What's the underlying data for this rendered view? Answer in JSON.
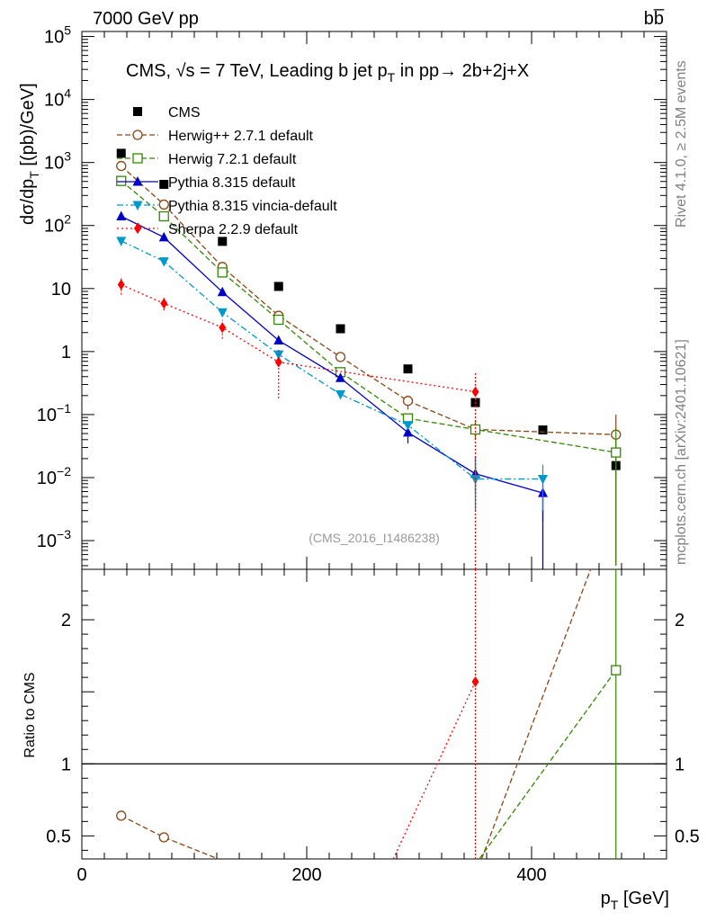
{
  "header": {
    "energy_label": "7000 GeV pp",
    "process_label": "bb̅"
  },
  "side": {
    "rivet": "Rivet 4.1.0, ≥ 2.5M events",
    "mcplots": "mcplots.cern.ch [arXiv:2401.10621]"
  },
  "chart_data": {
    "type": "line",
    "title": "CMS, √s = 7 TeV, Leading b jet p_T in pp→ 2b+2j+X",
    "title_parts": {
      "pre": "CMS, ",
      "sqrt": "√",
      "s_eq": "s = 7 TeV, Leading b jet p",
      "sub": "T",
      "post": " in pp→  2b+2j+X"
    },
    "analysis_tag": "(CMS_2016_I1486238)",
    "xlabel": "p_T [GeV]",
    "xlabel_parts": {
      "main": "p",
      "sub": "T",
      "unit": " [GeV]"
    },
    "ylabel": "dσ/dp_T [(pb)/GeV]",
    "ylabel_parts": {
      "main": "dσ/dp",
      "sub": "T",
      "unit": " [(pb)/GeV]"
    },
    "ratio_ylabel": "Ratio to CMS",
    "xlim": [
      0,
      520
    ],
    "ylim_log": [
      0.00035,
      120000
    ],
    "ratio_ylim": [
      0.34,
      2.35
    ],
    "x_ticks": [
      0,
      200,
      400
    ],
    "x_tick_labels": [
      "0",
      "200",
      "400"
    ],
    "y_ticks": [
      0.001,
      0.01,
      0.1,
      1,
      10,
      100,
      1000,
      10000,
      100000
    ],
    "y_tick_labels": [
      {
        "b": "10",
        "e": "−3"
      },
      {
        "b": "10",
        "e": "−2"
      },
      {
        "b": "10",
        "e": "−1"
      },
      {
        "b": "1",
        "e": ""
      },
      {
        "b": "10",
        "e": ""
      },
      {
        "b": "10",
        "e": "2"
      },
      {
        "b": "10",
        "e": "3"
      },
      {
        "b": "10",
        "e": "4"
      },
      {
        "b": "10",
        "e": "5"
      }
    ],
    "ratio_ticks": [
      0.5,
      1,
      2
    ],
    "ratio_tick_labels": [
      "0.5",
      "1",
      "2"
    ],
    "series": [
      {
        "name": "CMS",
        "color": "#000000",
        "marker": "square",
        "line": "none",
        "points": [
          [
            35,
            1400
          ],
          [
            73,
            450
          ],
          [
            125,
            56
          ],
          [
            175,
            10.8
          ],
          [
            230,
            2.3
          ],
          [
            290,
            0.53
          ],
          [
            350,
            0.155
          ],
          [
            410,
            0.057
          ],
          [
            475,
            0.0155
          ]
        ]
      },
      {
        "name": "Herwig++ 2.7.1 default",
        "color": "#8B4513",
        "marker": "circle",
        "line": "dash",
        "points": [
          [
            35,
            880
          ],
          [
            73,
            215
          ],
          [
            125,
            22
          ],
          [
            175,
            3.7
          ],
          [
            230,
            0.82
          ],
          [
            290,
            0.165
          ],
          [
            350,
            0.058
          ],
          [
            475,
            0.048
          ]
        ],
        "errors": [
          [
            290,
            0.12,
            0.2
          ],
          [
            350,
            0.04,
            0.08
          ],
          [
            475,
            0.0004,
            0.1
          ]
        ],
        "ratio": [
          [
            35,
            0.64
          ],
          [
            73,
            0.49
          ],
          [
            121.3,
            0.34
          ]
        ],
        "ratio_extra": [
          [
            355.5,
            0.34
          ],
          [
            452.5,
            2.35
          ]
        ]
      },
      {
        "name": "Herwig 7.2.1 default",
        "color": "#338800",
        "marker": "open-square",
        "line": "dash",
        "points": [
          [
            35,
            510
          ],
          [
            73,
            140
          ],
          [
            125,
            18
          ],
          [
            175,
            3.2
          ],
          [
            230,
            0.47
          ],
          [
            290,
            0.087
          ],
          [
            350,
            0.058
          ],
          [
            475,
            0.025
          ]
        ],
        "errors": [
          [
            290,
            0.06,
            0.1
          ],
          [
            350,
            0.04,
            0.08
          ],
          [
            475,
            0.0004,
            0.06
          ]
        ],
        "ratio": [
          [
            353.5,
            0.34
          ],
          [
            475,
            1.65
          ]
        ],
        "ratio_drop": [
          475,
          1.65
        ]
      },
      {
        "name": "Pythia 8.315 default",
        "color": "#0000CC",
        "marker": "triangle-up",
        "line": "solid",
        "points": [
          [
            35,
            140
          ],
          [
            73,
            65
          ],
          [
            125,
            8.8
          ],
          [
            175,
            1.5
          ],
          [
            230,
            0.38
          ],
          [
            290,
            0.052
          ],
          [
            350,
            0.0115
          ],
          [
            410,
            0.0057
          ]
        ],
        "errors": [
          [
            290,
            0.035,
            0.075
          ],
          [
            350,
            0.006,
            0.022
          ],
          [
            410,
            0.002,
            0.01
          ]
        ],
        "drop_to": [
          410,
          0.0003
        ]
      },
      {
        "name": "Pythia 8.315 vincia-default",
        "color": "#0099CC",
        "marker": "triangle-down",
        "line": "dashdot",
        "points": [
          [
            35,
            57
          ],
          [
            73,
            27
          ],
          [
            125,
            4.2
          ],
          [
            175,
            0.9
          ],
          [
            230,
            0.21
          ],
          [
            290,
            0.068
          ],
          [
            350,
            0.0095
          ],
          [
            410,
            0.0095
          ]
        ],
        "errors": [
          [
            350,
            0.003,
            0.02
          ],
          [
            410,
            0.003,
            0.016
          ]
        ]
      },
      {
        "name": "Sherpa 2.2.9 default",
        "color": "#FF0000",
        "marker": "diamond",
        "line": "dot",
        "points": [
          [
            35,
            11.5
          ],
          [
            73,
            5.8
          ],
          [
            125,
            2.4
          ],
          [
            175,
            0.68
          ],
          [
            350,
            0.23
          ]
        ],
        "errors": [
          [
            35,
            8,
            15
          ],
          [
            73,
            4.5,
            7.5
          ],
          [
            125,
            1.6,
            3.2
          ],
          [
            175,
            0.18,
            1.1
          ],
          [
            350,
            0.0003,
            0.45
          ]
        ],
        "legend_marker_x": 50,
        "legend_marker_y": 92,
        "ratio": [
          [
            277,
            0.34
          ],
          [
            350,
            1.57
          ]
        ],
        "ratio_drop": [
          350,
          1.57
        ]
      }
    ]
  }
}
